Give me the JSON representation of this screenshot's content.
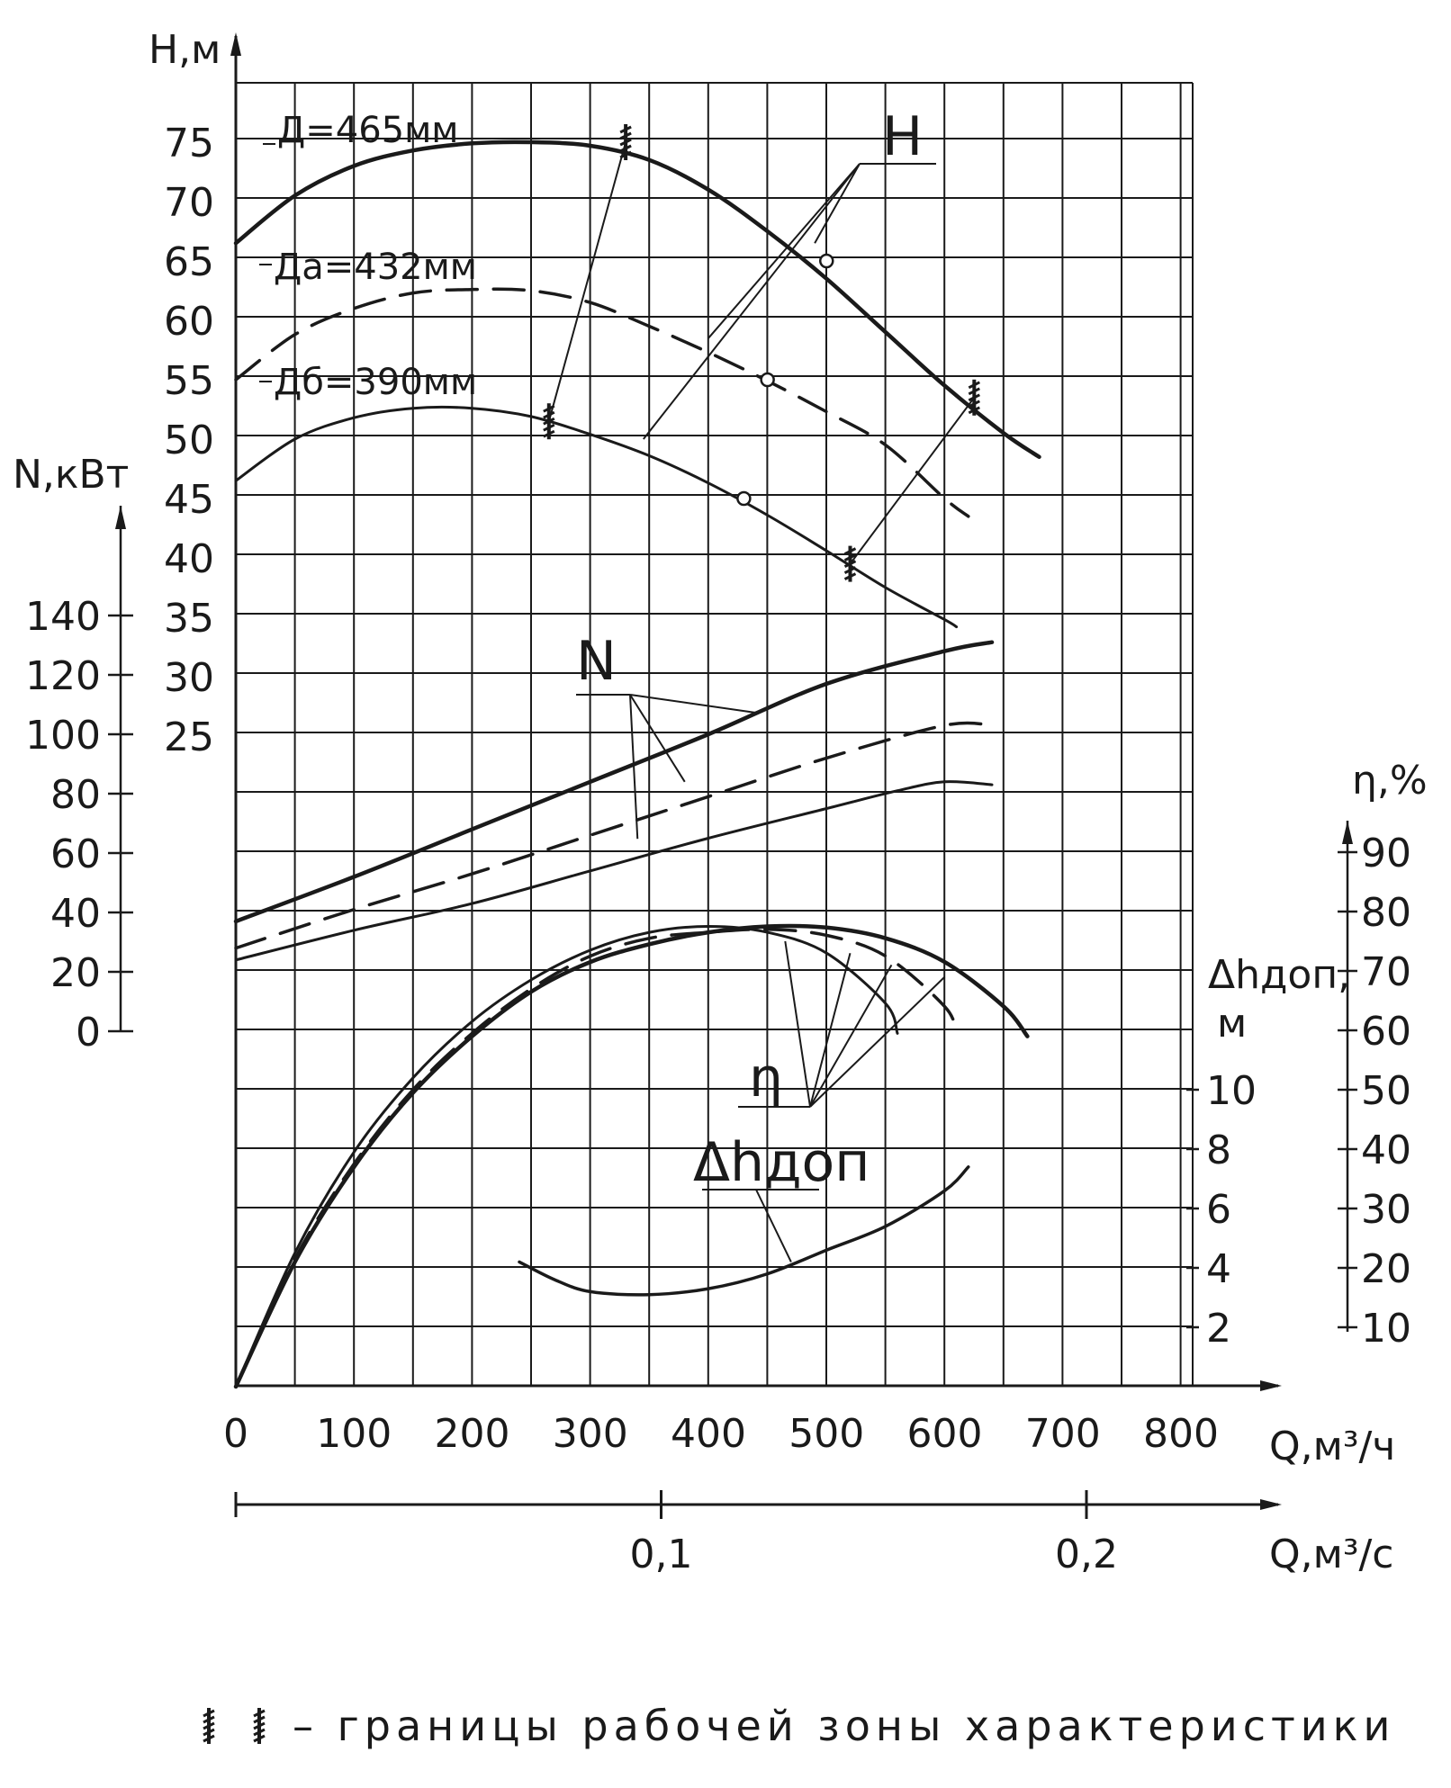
{
  "chart_data": {
    "type": "line",
    "title": "",
    "x": {
      "label": "Q,м³/ч",
      "ticks": [
        0,
        100,
        200,
        300,
        400,
        500,
        600,
        700,
        800
      ],
      "range": [
        0,
        800
      ]
    },
    "x2": {
      "label": "Q,м³/с",
      "ticks": [
        {
          "text": "0,1",
          "q_m3h": 360
        },
        {
          "text": "0,2",
          "q_m3h": 720
        }
      ]
    },
    "axes": {
      "H": {
        "label": "H,м",
        "ticks": [
          25,
          30,
          35,
          40,
          45,
          50,
          55,
          60,
          65,
          70,
          75
        ]
      },
      "N": {
        "label": "N,кВт",
        "ticks": [
          0,
          20,
          40,
          60,
          80,
          100,
          120,
          140
        ]
      },
      "eta": {
        "label": "η,%",
        "ticks": [
          10,
          20,
          30,
          40,
          50,
          60,
          70,
          80,
          90
        ]
      },
      "dh": {
        "label": "Δhдоп,",
        "unit": "м",
        "ticks": [
          2,
          4,
          6,
          8,
          10
        ]
      }
    },
    "curve_labels": {
      "H": "H",
      "N": "N",
      "eta": "η",
      "dh": "Δhдоп"
    },
    "impellers": [
      {
        "name": "Д=465мм",
        "style": "solid-thick"
      },
      {
        "name": "Дa=432мм",
        "style": "dashed"
      },
      {
        "name": "Дб=390мм",
        "style": "solid"
      }
    ],
    "H_series": [
      {
        "impeller": 0,
        "x": [
          0,
          50,
          100,
          150,
          200,
          250,
          300,
          350,
          400,
          450,
          500,
          550,
          600,
          650,
          680
        ],
        "y": [
          66.5,
          70.5,
          73,
          74.3,
          74.9,
          75,
          74.7,
          73.5,
          71,
          67.5,
          63.5,
          59,
          54.5,
          50.5,
          48.5
        ]
      },
      {
        "impeller": 1,
        "x": [
          0,
          50,
          100,
          150,
          200,
          250,
          300,
          350,
          400,
          450,
          500,
          550,
          600,
          620
        ],
        "y": [
          55,
          58.8,
          61,
          62.3,
          62.6,
          62.5,
          61.5,
          59.5,
          57.3,
          54.9,
          52.3,
          49.5,
          45,
          43.5
        ]
      },
      {
        "impeller": 2,
        "x": [
          0,
          50,
          100,
          150,
          200,
          250,
          300,
          350,
          400,
          450,
          500,
          550,
          600,
          610
        ],
        "y": [
          46.5,
          50,
          51.8,
          52.6,
          52.6,
          51.9,
          50.4,
          48.6,
          46.3,
          43.6,
          40.6,
          37.5,
          34.8,
          34.2
        ]
      }
    ],
    "N_series": [
      {
        "impeller": 0,
        "x": [
          0,
          100,
          200,
          300,
          400,
          500,
          600,
          640
        ],
        "y": [
          37,
          52,
          68,
          84,
          100,
          117,
          128,
          131
        ]
      },
      {
        "impeller": 1,
        "x": [
          0,
          100,
          200,
          300,
          400,
          500,
          600,
          640
        ],
        "y": [
          28,
          41,
          53,
          66,
          79,
          92,
          103,
          103
        ]
      },
      {
        "impeller": 2,
        "x": [
          0,
          100,
          200,
          300,
          400,
          500,
          560,
          600,
          640
        ],
        "y": [
          24,
          34,
          43,
          54,
          65,
          75,
          81,
          84,
          83
        ]
      }
    ],
    "eta_series": [
      {
        "impeller": 0,
        "x": [
          0,
          50,
          100,
          150,
          200,
          250,
          300,
          350,
          400,
          450,
          500,
          550,
          600,
          650,
          670
        ],
        "y": [
          0,
          21,
          37,
          49.5,
          59,
          66.5,
          71.5,
          74.5,
          76.5,
          77.5,
          77.3,
          75.5,
          71.5,
          64,
          59
        ]
      },
      {
        "impeller": 1,
        "x": [
          0,
          50,
          100,
          150,
          200,
          250,
          300,
          350,
          400,
          450,
          500,
          550,
          600,
          610
        ],
        "y": [
          0,
          21.5,
          37.5,
          50,
          59.5,
          67,
          72.5,
          75.5,
          76.5,
          77,
          76,
          72.5,
          64,
          59.5
        ]
      },
      {
        "impeller": 2,
        "x": [
          0,
          50,
          100,
          150,
          200,
          250,
          300,
          350,
          400,
          450,
          500,
          550,
          560
        ],
        "y": [
          0,
          22.5,
          39.5,
          52,
          61.5,
          68.5,
          73.5,
          76.5,
          77.5,
          76.5,
          73,
          64.5,
          59.5
        ]
      }
    ],
    "dh_series": [
      {
        "x": [
          240,
          270,
          300,
          350,
          400,
          450,
          500,
          550,
          600,
          620
        ],
        "y": [
          4.2,
          3.6,
          3.2,
          3.1,
          3.3,
          3.8,
          4.6,
          5.4,
          6.6,
          7.4
        ]
      }
    ],
    "operating_points": [
      {
        "impeller": 0,
        "x": 500,
        "y": 65
      },
      {
        "impeller": 1,
        "x": 450,
        "y": 55
      },
      {
        "impeller": 2,
        "x": 430,
        "y": 45
      }
    ],
    "work_zone_marks": [
      {
        "impeller": 0,
        "x": 330,
        "y": 75
      },
      {
        "impeller": 0,
        "x": 625,
        "y": 53.5
      },
      {
        "impeller": 2,
        "x": 265,
        "y": 51.5
      },
      {
        "impeller": 2,
        "x": 520,
        "y": 39.5
      }
    ],
    "grid": true,
    "legend_note": "– границы рабочей зоны характеристики"
  }
}
